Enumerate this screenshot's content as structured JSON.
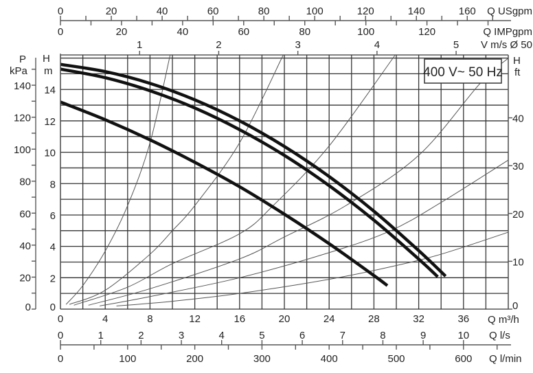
{
  "chart_data": {
    "type": "line",
    "title": "",
    "annotation": "400 V~ 50 Hz",
    "grid": true,
    "x_axis": {
      "label": "Q m³/h",
      "range": [
        0,
        40
      ],
      "ticks": [
        0,
        4,
        8,
        12,
        16,
        20,
        24,
        28,
        32,
        36
      ],
      "grid_step": 2
    },
    "y_axis": {
      "label_top": "H",
      "label_unit": "m",
      "range": [
        0,
        16.2
      ],
      "ticks": [
        0,
        2,
        4,
        6,
        8,
        10,
        12,
        14
      ],
      "grid_step": 1
    },
    "secondary_axes": {
      "pressure": {
        "label_top": "P",
        "label_unit": "kPa",
        "ticks": [
          0,
          20,
          40,
          60,
          80,
          100,
          120,
          140
        ],
        "minor_step": 10
      },
      "head_ft": {
        "label_top": "H",
        "label_unit": "ft",
        "ticks": [
          0,
          10,
          20,
          30,
          40
        ]
      },
      "q_usgpm": {
        "label": "Q USgpm",
        "ticks": [
          0,
          20,
          40,
          60,
          80,
          100,
          120,
          140,
          160
        ],
        "minor_step": 10
      },
      "q_impgpm": {
        "label": "Q IMPgpm",
        "ticks": [
          0,
          20,
          40,
          60,
          80,
          100,
          120
        ],
        "minor_step": 10
      },
      "velocity": {
        "label": "V m/s Ø 50",
        "ticks": [
          1,
          2,
          3,
          4,
          5
        ]
      },
      "q_ls": {
        "label": "Q l/s",
        "ticks": [
          0,
          1,
          2,
          3,
          4,
          5,
          6,
          7,
          8,
          9,
          10
        ]
      },
      "q_lmin": {
        "label": "Q l/min",
        "ticks": [
          0,
          100,
          200,
          300,
          400,
          500,
          600
        ],
        "minor_step": 50
      }
    },
    "pump_curves": [
      {
        "x": [
          0,
          4,
          8,
          12,
          16,
          20,
          24,
          28,
          32,
          34.4
        ],
        "y": [
          15.6,
          15.14,
          14.39,
          13.34,
          12.0,
          10.37,
          8.45,
          6.24,
          3.73,
          2.1
        ]
      },
      {
        "x": [
          0,
          4,
          8,
          12,
          16,
          20,
          24,
          28,
          32,
          33.7
        ],
        "y": [
          15.3,
          14.75,
          13.92,
          12.82,
          11.44,
          9.8,
          7.87,
          5.67,
          3.19,
          2.06
        ]
      },
      {
        "x": [
          0,
          4,
          8,
          12,
          16,
          20,
          24,
          28,
          29.2
        ],
        "y": [
          13.2,
          12.07,
          10.79,
          9.36,
          7.8,
          6.05,
          4.17,
          2.14,
          1.5
        ]
      }
    ],
    "system_curves": [
      {
        "x": [
          0.5,
          2,
          4,
          6,
          8,
          9.8
        ],
        "y": [
          0.3,
          1.5,
          3.7,
          6.6,
          10.6,
          16.2
        ]
      },
      {
        "x": [
          0.8,
          4,
          8,
          10,
          12,
          16,
          19.9
        ],
        "y": [
          0.3,
          1.2,
          3.5,
          5.0,
          6.6,
          10.6,
          16.2
        ]
      },
      {
        "x": [
          1.2,
          6,
          10,
          16,
          19,
          24,
          29.9
        ],
        "y": [
          0.25,
          1.4,
          2.9,
          4.8,
          6.6,
          10.4,
          16.2
        ]
      },
      {
        "x": [
          2.5,
          8,
          16,
          20,
          25.5,
          32,
          37.5,
          40
        ],
        "y": [
          0.25,
          1.3,
          3.2,
          4.6,
          6.6,
          9.8,
          14.4,
          16.0
        ]
      },
      {
        "x": [
          3.5,
          8,
          16,
          24,
          29.5,
          34,
          40
        ],
        "y": [
          0.2,
          0.8,
          2.0,
          3.6,
          5.0,
          6.8,
          9.5
        ]
      },
      {
        "x": [
          5,
          10,
          16,
          24,
          29.5,
          34,
          40
        ],
        "y": [
          0.2,
          0.5,
          1.0,
          1.9,
          2.7,
          3.5,
          4.9
        ]
      }
    ],
    "colors": {
      "pump_curve": "#111111",
      "system_curve": "#555555",
      "grid": "#333333"
    }
  }
}
